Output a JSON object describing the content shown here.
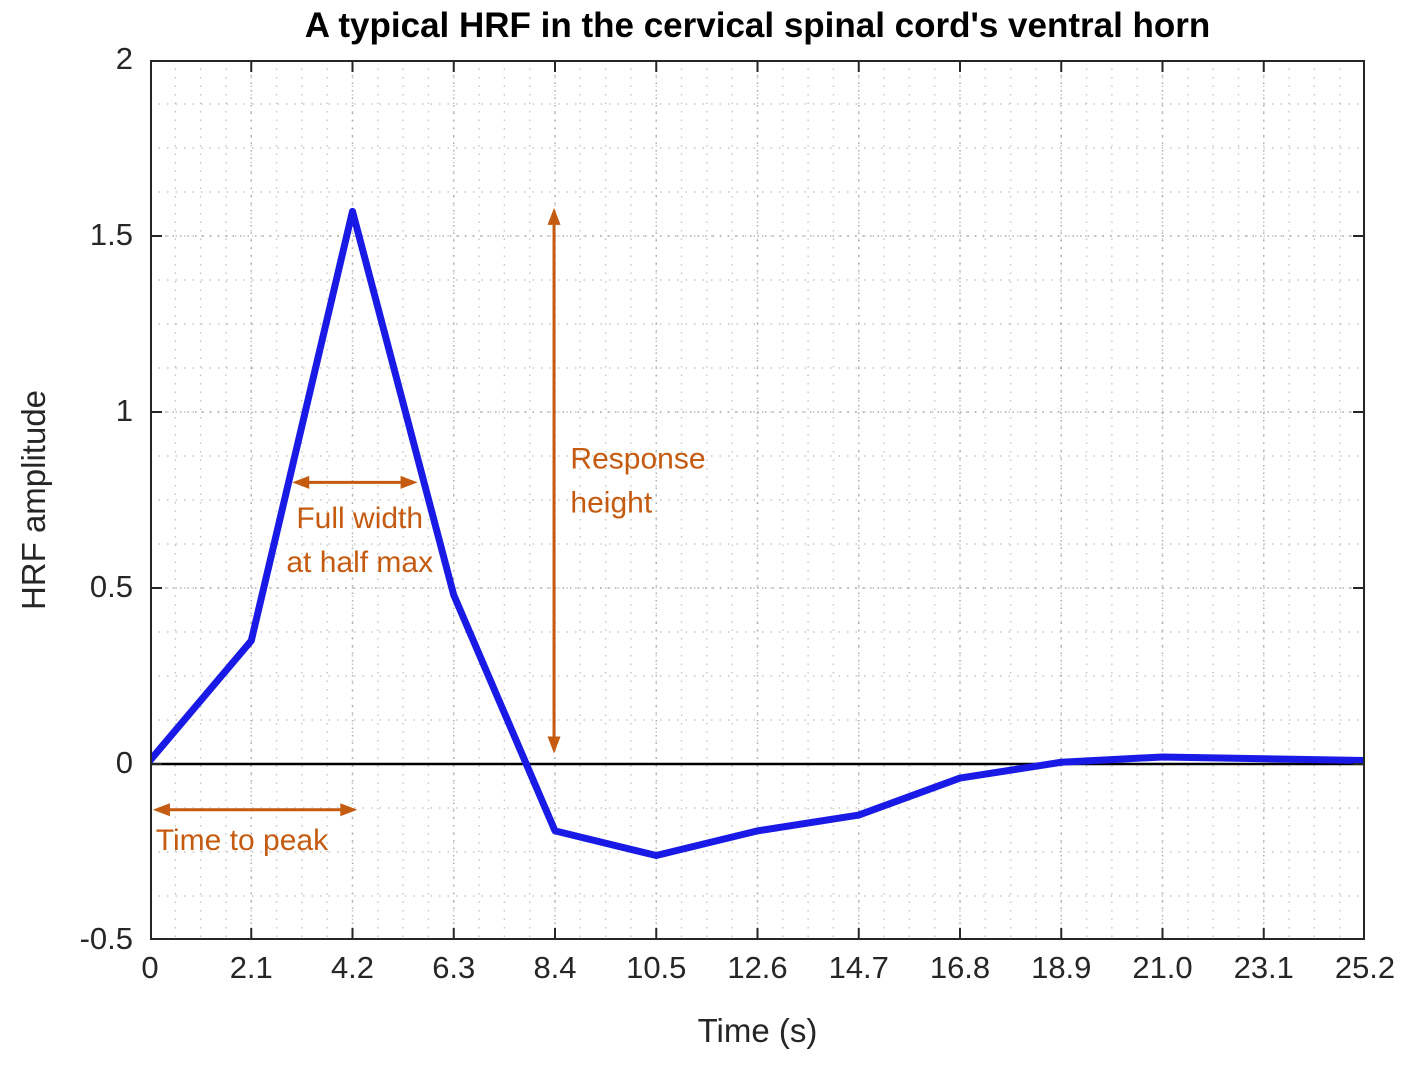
{
  "chart_data": {
    "type": "line",
    "title": "A typical HRF in the cervical spinal cord's ventral horn",
    "xlabel": "Time (s)",
    "ylabel": "HRF amplitude",
    "xlim": [
      0,
      25.2
    ],
    "ylim": [
      -0.5,
      2
    ],
    "xticks": [
      0,
      2.1,
      4.2,
      6.3,
      8.4,
      10.5,
      12.6,
      14.7,
      16.8,
      18.9,
      21.0,
      23.1,
      25.2
    ],
    "xtick_labels": [
      "0",
      "2.1",
      "4.2",
      "6.3",
      "8.4",
      "10.5",
      "12.6",
      "14.7",
      "16.8",
      "18.9",
      "21.0",
      "23.1",
      "25.2"
    ],
    "yticks": [
      -0.5,
      0,
      0.5,
      1,
      1.5,
      2
    ],
    "ytick_labels": [
      "-0.5",
      "0",
      "0.5",
      "1",
      "1.5",
      "2"
    ],
    "grid": "dotted-minor",
    "zero_line": true,
    "line_color": "#1a1ae6",
    "annotation_color": "#c55a11",
    "series": [
      {
        "name": "HRF",
        "x": [
          0,
          2.1,
          4.2,
          6.3,
          8.4,
          10.5,
          12.6,
          14.7,
          16.8,
          18.9,
          21.0,
          23.1,
          25.2
        ],
        "y": [
          0.01,
          0.35,
          1.57,
          0.48,
          -0.19,
          -0.26,
          -0.19,
          -0.145,
          -0.04,
          0.005,
          0.02,
          0.015,
          0.01
        ]
      }
    ],
    "annotations": [
      {
        "name": "fwhm",
        "type": "h-arrow",
        "x1": 2.95,
        "x2": 5.55,
        "y": 0.8,
        "text_lines": [
          "Full width",
          "at half max"
        ],
        "text_x": 4.35,
        "text_y": 0.67,
        "anchor": "middle"
      },
      {
        "name": "response-height",
        "type": "v-arrow",
        "x": 8.38,
        "y1": 0.03,
        "y2": 1.58,
        "text_lines": [
          "Response",
          "height"
        ],
        "text_x": 8.72,
        "text_y": 0.84,
        "anchor": "start"
      },
      {
        "name": "time-to-peak",
        "type": "h-arrow",
        "x1": 0.06,
        "x2": 4.3,
        "y": -0.13,
        "text_lines": [
          "Time to peak"
        ],
        "text_x": 0.12,
        "text_y": -0.245,
        "anchor": "start"
      }
    ]
  }
}
